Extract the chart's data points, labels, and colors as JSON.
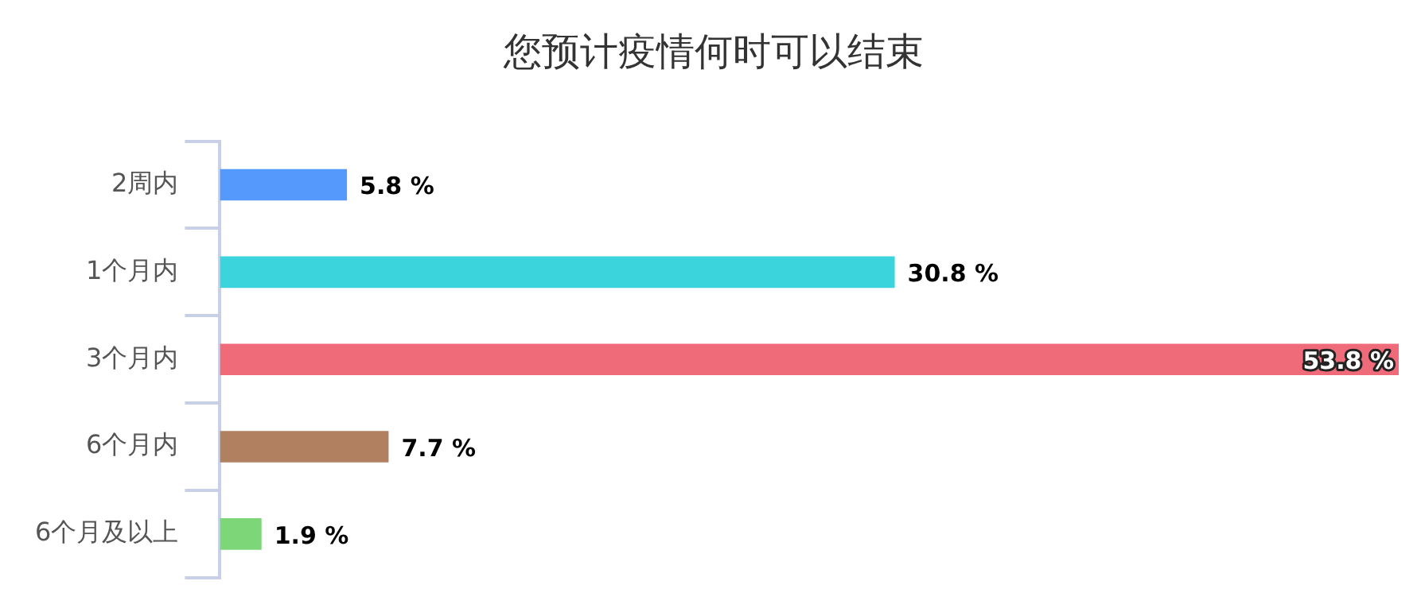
{
  "chart_data": {
    "type": "bar",
    "orientation": "horizontal",
    "title": "您预计疫情何时可以结束",
    "categories": [
      "2周内",
      "1个月内",
      "3个月内",
      "6个月内",
      "6个月及以上"
    ],
    "values": [
      5.8,
      30.8,
      53.8,
      7.7,
      1.9
    ],
    "colors": [
      "#5599fd",
      "#3cd4dc",
      "#f06b7a",
      "#b08060",
      "#7dd677"
    ],
    "value_labels": [
      "5.8 %",
      "30.8 %",
      "53.8 %",
      "7.7 %",
      "1.9 %"
    ],
    "xlim": [
      0,
      53.8
    ],
    "grid": false,
    "legend": false
  }
}
